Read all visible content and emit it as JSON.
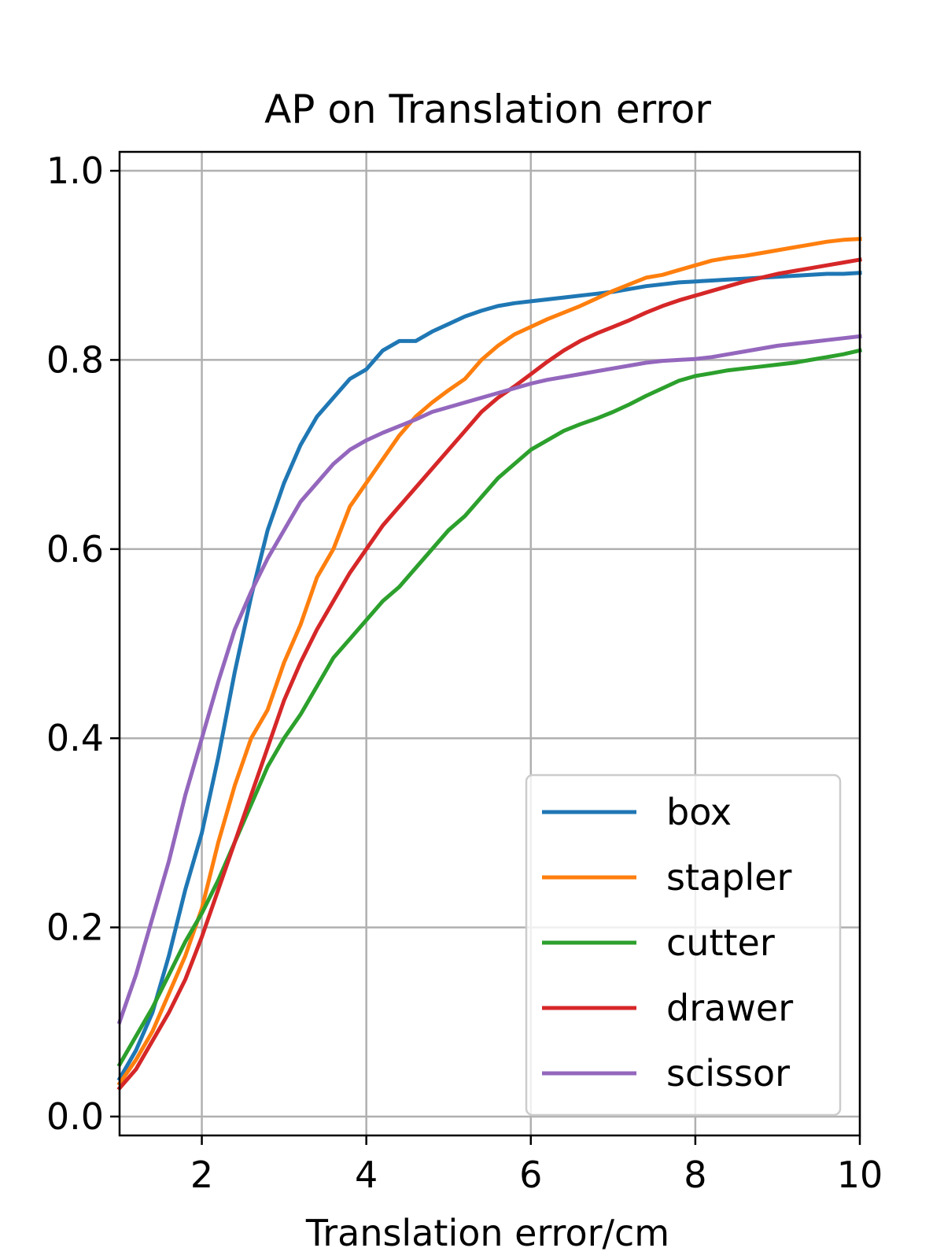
{
  "chart_data": {
    "type": "line",
    "title": "AP on Translation error",
    "xlabel": "Translation error/cm",
    "ylabel": "",
    "xlim": [
      1,
      10
    ],
    "ylim": [
      -0.02,
      1.02
    ],
    "xticks": [
      2,
      4,
      6,
      8,
      10
    ],
    "xtick_labels": [
      "2",
      "4",
      "6",
      "8",
      "10"
    ],
    "yticks": [
      0.0,
      0.2,
      0.4,
      0.6,
      0.8,
      1.0
    ],
    "ytick_labels": [
      "0.0",
      "0.2",
      "0.4",
      "0.6",
      "0.8",
      "1.0"
    ],
    "grid": true,
    "legend_position": "lower right",
    "series": [
      {
        "name": "box",
        "color": "#1f77b4",
        "x": [
          1.0,
          1.2,
          1.4,
          1.6,
          1.8,
          2.0,
          2.2,
          2.4,
          2.6,
          2.8,
          3.0,
          3.2,
          3.4,
          3.6,
          3.8,
          4.0,
          4.2,
          4.4,
          4.6,
          4.8,
          5.0,
          5.2,
          5.4,
          5.6,
          5.8,
          6.0,
          6.2,
          6.4,
          6.6,
          6.8,
          7.0,
          7.2,
          7.4,
          7.6,
          7.8,
          8.0,
          8.2,
          8.4,
          8.6,
          8.8,
          9.0,
          9.2,
          9.4,
          9.6,
          9.8,
          10.0
        ],
        "y": [
          0.04,
          0.07,
          0.11,
          0.17,
          0.24,
          0.3,
          0.38,
          0.47,
          0.55,
          0.62,
          0.67,
          0.71,
          0.74,
          0.76,
          0.78,
          0.79,
          0.81,
          0.82,
          0.82,
          0.83,
          0.838,
          0.846,
          0.852,
          0.857,
          0.86,
          0.862,
          0.864,
          0.866,
          0.868,
          0.87,
          0.872,
          0.875,
          0.878,
          0.88,
          0.882,
          0.883,
          0.884,
          0.885,
          0.886,
          0.887,
          0.888,
          0.889,
          0.89,
          0.891,
          0.891,
          0.892
        ]
      },
      {
        "name": "stapler",
        "color": "#ff7f0e",
        "x": [
          1.0,
          1.2,
          1.4,
          1.6,
          1.8,
          2.0,
          2.2,
          2.4,
          2.6,
          2.8,
          3.0,
          3.2,
          3.4,
          3.6,
          3.8,
          4.0,
          4.2,
          4.4,
          4.6,
          4.8,
          5.0,
          5.2,
          5.4,
          5.6,
          5.8,
          6.0,
          6.2,
          6.4,
          6.6,
          6.8,
          7.0,
          7.2,
          7.4,
          7.6,
          7.8,
          8.0,
          8.2,
          8.4,
          8.6,
          8.8,
          9.0,
          9.2,
          9.4,
          9.6,
          9.8,
          10.0
        ],
        "y": [
          0.035,
          0.06,
          0.09,
          0.13,
          0.17,
          0.22,
          0.29,
          0.35,
          0.4,
          0.43,
          0.48,
          0.52,
          0.57,
          0.6,
          0.645,
          0.67,
          0.695,
          0.72,
          0.74,
          0.755,
          0.768,
          0.78,
          0.8,
          0.815,
          0.827,
          0.835,
          0.843,
          0.85,
          0.857,
          0.865,
          0.873,
          0.88,
          0.887,
          0.89,
          0.895,
          0.9,
          0.905,
          0.908,
          0.91,
          0.913,
          0.916,
          0.919,
          0.922,
          0.925,
          0.927,
          0.928
        ]
      },
      {
        "name": "cutter",
        "color": "#2ca02c",
        "x": [
          1.0,
          1.2,
          1.4,
          1.6,
          1.8,
          2.0,
          2.2,
          2.4,
          2.6,
          2.8,
          3.0,
          3.2,
          3.4,
          3.6,
          3.8,
          4.0,
          4.2,
          4.4,
          4.6,
          4.8,
          5.0,
          5.2,
          5.4,
          5.6,
          5.8,
          6.0,
          6.2,
          6.4,
          6.6,
          6.8,
          7.0,
          7.2,
          7.4,
          7.6,
          7.8,
          8.0,
          8.2,
          8.4,
          8.6,
          8.8,
          9.0,
          9.2,
          9.4,
          9.6,
          9.8,
          10.0
        ],
        "y": [
          0.055,
          0.085,
          0.115,
          0.15,
          0.185,
          0.215,
          0.25,
          0.29,
          0.33,
          0.37,
          0.4,
          0.425,
          0.455,
          0.485,
          0.505,
          0.525,
          0.545,
          0.56,
          0.58,
          0.6,
          0.62,
          0.635,
          0.655,
          0.675,
          0.69,
          0.705,
          0.715,
          0.725,
          0.732,
          0.738,
          0.745,
          0.753,
          0.762,
          0.77,
          0.778,
          0.783,
          0.786,
          0.789,
          0.791,
          0.793,
          0.795,
          0.797,
          0.8,
          0.803,
          0.806,
          0.81
        ]
      },
      {
        "name": "drawer",
        "color": "#d62728",
        "x": [
          1.0,
          1.2,
          1.4,
          1.6,
          1.8,
          2.0,
          2.2,
          2.4,
          2.6,
          2.8,
          3.0,
          3.2,
          3.4,
          3.6,
          3.8,
          4.0,
          4.2,
          4.4,
          4.6,
          4.8,
          5.0,
          5.2,
          5.4,
          5.6,
          5.8,
          6.0,
          6.2,
          6.4,
          6.6,
          6.8,
          7.0,
          7.2,
          7.4,
          7.6,
          7.8,
          8.0,
          8.2,
          8.4,
          8.6,
          8.8,
          9.0,
          9.2,
          9.4,
          9.6,
          9.8,
          10.0
        ],
        "y": [
          0.03,
          0.05,
          0.08,
          0.11,
          0.145,
          0.19,
          0.24,
          0.29,
          0.34,
          0.39,
          0.44,
          0.48,
          0.515,
          0.545,
          0.575,
          0.6,
          0.625,
          0.645,
          0.665,
          0.685,
          0.705,
          0.725,
          0.745,
          0.76,
          0.772,
          0.785,
          0.798,
          0.81,
          0.82,
          0.828,
          0.835,
          0.842,
          0.85,
          0.857,
          0.863,
          0.868,
          0.873,
          0.878,
          0.883,
          0.887,
          0.891,
          0.894,
          0.897,
          0.9,
          0.903,
          0.906
        ]
      },
      {
        "name": "scissor",
        "color": "#9467bd",
        "x": [
          1.0,
          1.2,
          1.4,
          1.6,
          1.8,
          2.0,
          2.2,
          2.4,
          2.6,
          2.8,
          3.0,
          3.2,
          3.4,
          3.6,
          3.8,
          4.0,
          4.2,
          4.4,
          4.6,
          4.8,
          5.0,
          5.2,
          5.4,
          5.6,
          5.8,
          6.0,
          6.2,
          6.4,
          6.6,
          6.8,
          7.0,
          7.2,
          7.4,
          7.6,
          7.8,
          8.0,
          8.2,
          8.4,
          8.6,
          8.8,
          9.0,
          9.2,
          9.4,
          9.6,
          9.8,
          10.0
        ],
        "y": [
          0.1,
          0.15,
          0.21,
          0.27,
          0.34,
          0.4,
          0.46,
          0.515,
          0.555,
          0.59,
          0.62,
          0.65,
          0.67,
          0.69,
          0.705,
          0.715,
          0.723,
          0.73,
          0.737,
          0.745,
          0.75,
          0.755,
          0.76,
          0.765,
          0.77,
          0.775,
          0.779,
          0.782,
          0.785,
          0.788,
          0.791,
          0.794,
          0.797,
          0.799,
          0.8,
          0.801,
          0.803,
          0.806,
          0.809,
          0.812,
          0.815,
          0.817,
          0.819,
          0.821,
          0.823,
          0.825
        ]
      }
    ]
  }
}
